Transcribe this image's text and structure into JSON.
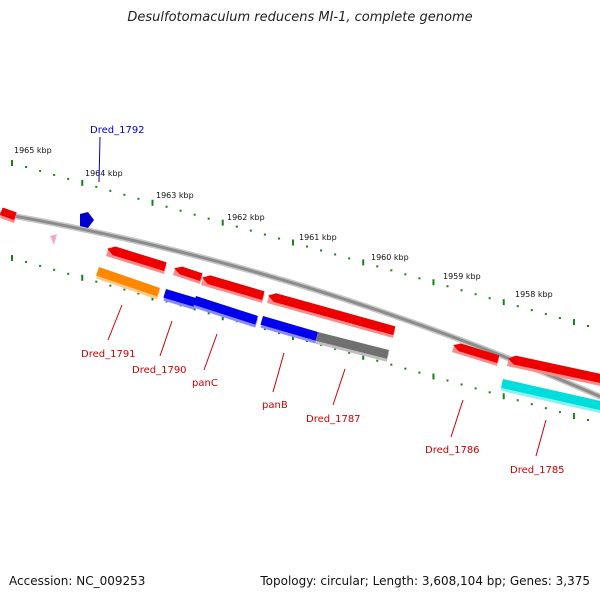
{
  "title": "Desulfotomaculum reducens MI-1, complete genome",
  "footer": {
    "accession": "Accession: NC_009253",
    "summary": "Topology: circular; Length: 3,608,104 bp; Genes: 3,375"
  },
  "colors": {
    "backbone": "#8c8c8c",
    "tick": "#1a7f1a",
    "tick_label": "#111111",
    "gene_label": "#cc0000",
    "highlight_label": "#0000cc"
  },
  "ticks": [
    {
      "label": "1965 kbp"
    },
    {
      "label": "1964 kbp"
    },
    {
      "label": "1963 kbp"
    },
    {
      "label": "1962 kbp"
    },
    {
      "label": "1961 kbp"
    },
    {
      "label": "1960 kbp"
    },
    {
      "label": "1959 kbp"
    },
    {
      "label": "1958 kbp"
    }
  ],
  "genes": [
    {
      "name": "Dred_1792",
      "color": "#0000cc",
      "label_color": "#0000cc",
      "strand": "forward",
      "shape": "small-arrow"
    },
    {
      "name": "Dred_1791",
      "color": "#ff8800",
      "strand": "reverse"
    },
    {
      "name": "Dred_1790",
      "color": "#0000ee",
      "strand": "reverse"
    },
    {
      "name": "panC",
      "color": "#0000ee",
      "strand": "reverse"
    },
    {
      "name": "panB",
      "color": "#0000ee",
      "strand": "reverse"
    },
    {
      "name": "Dred_1787",
      "color": "#707070",
      "strand": "reverse"
    },
    {
      "name": "Dred_1786",
      "color": "#ee0000",
      "strand": "reverse"
    },
    {
      "name": "Dred_1785",
      "color": "#00dddd",
      "strand": "reverse"
    }
  ]
}
